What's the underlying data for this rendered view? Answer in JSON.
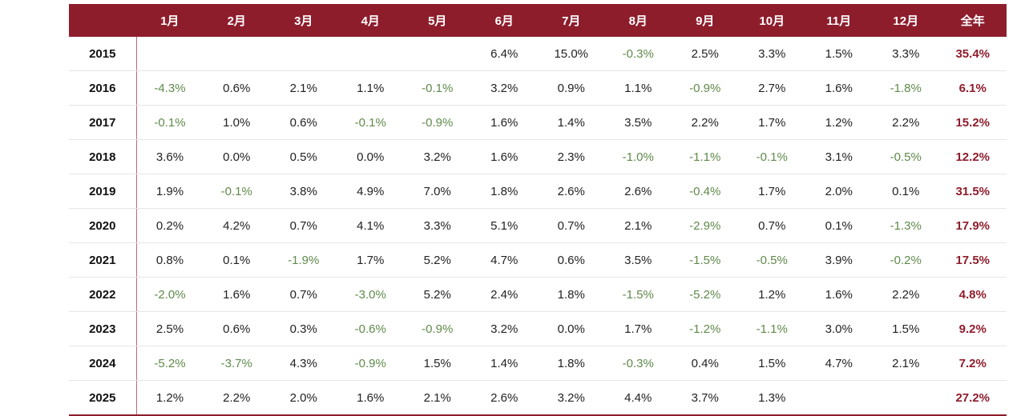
{
  "chart_data": {
    "type": "table",
    "title": "",
    "columns": [
      "",
      "1月",
      "2月",
      "3月",
      "4月",
      "5月",
      "6月",
      "7月",
      "8月",
      "9月",
      "10月",
      "11月",
      "12月",
      "全年"
    ],
    "rows": [
      {
        "year": "2015",
        "cells": [
          "",
          "",
          "",
          "",
          "",
          "6.4%",
          "15.0%",
          "-0.3%",
          "2.5%",
          "3.3%",
          "1.5%",
          "3.3%"
        ],
        "total": "35.4%"
      },
      {
        "year": "2016",
        "cells": [
          "-4.3%",
          "0.6%",
          "2.1%",
          "1.1%",
          "-0.1%",
          "3.2%",
          "0.9%",
          "1.1%",
          "-0.9%",
          "2.7%",
          "1.6%",
          "-1.8%"
        ],
        "total": "6.1%"
      },
      {
        "year": "2017",
        "cells": [
          "-0.1%",
          "1.0%",
          "0.6%",
          "-0.1%",
          "-0.9%",
          "1.6%",
          "1.4%",
          "3.5%",
          "2.2%",
          "1.7%",
          "1.2%",
          "2.2%"
        ],
        "total": "15.2%"
      },
      {
        "year": "2018",
        "cells": [
          "3.6%",
          "0.0%",
          "0.5%",
          "0.0%",
          "3.2%",
          "1.6%",
          "2.3%",
          "-1.0%",
          "-1.1%",
          "-0.1%",
          "3.1%",
          "-0.5%"
        ],
        "total": "12.2%"
      },
      {
        "year": "2019",
        "cells": [
          "1.9%",
          "-0.1%",
          "3.8%",
          "4.9%",
          "7.0%",
          "1.8%",
          "2.6%",
          "2.6%",
          "-0.4%",
          "1.7%",
          "2.0%",
          "0.1%"
        ],
        "total": "31.5%"
      },
      {
        "year": "2020",
        "cells": [
          "0.2%",
          "4.2%",
          "0.7%",
          "4.1%",
          "3.3%",
          "5.1%",
          "0.7%",
          "2.1%",
          "-2.9%",
          "0.7%",
          "0.1%",
          "-1.3%"
        ],
        "total": "17.9%"
      },
      {
        "year": "2021",
        "cells": [
          "0.8%",
          "0.1%",
          "-1.9%",
          "1.7%",
          "5.2%",
          "4.7%",
          "0.6%",
          "3.5%",
          "-1.5%",
          "-0.5%",
          "3.9%",
          "-0.2%"
        ],
        "total": "17.5%"
      },
      {
        "year": "2022",
        "cells": [
          "-2.0%",
          "1.6%",
          "0.7%",
          "-3.0%",
          "5.2%",
          "2.4%",
          "1.8%",
          "-1.5%",
          "-5.2%",
          "1.2%",
          "1.6%",
          "2.2%"
        ],
        "total": "4.8%"
      },
      {
        "year": "2023",
        "cells": [
          "2.5%",
          "0.6%",
          "0.3%",
          "-0.6%",
          "-0.9%",
          "3.2%",
          "0.0%",
          "1.7%",
          "-1.2%",
          "-1.1%",
          "3.0%",
          "1.5%"
        ],
        "total": "9.2%"
      },
      {
        "year": "2024",
        "cells": [
          "-5.2%",
          "-3.7%",
          "4.3%",
          "-0.9%",
          "1.5%",
          "1.4%",
          "1.8%",
          "-0.3%",
          "0.4%",
          "1.5%",
          "4.7%",
          "2.1%"
        ],
        "total": "7.2%"
      },
      {
        "year": "2025",
        "cells": [
          "1.2%",
          "2.2%",
          "2.0%",
          "1.6%",
          "2.1%",
          "2.6%",
          "3.2%",
          "4.4%",
          "3.7%",
          "1.3%",
          "",
          ""
        ],
        "total": "27.2%"
      }
    ]
  },
  "colors": {
    "header_bg": "#8e1d2c",
    "header_text": "#ffffff",
    "negative": "#5f8a4a",
    "total": "#8e1d2c"
  }
}
